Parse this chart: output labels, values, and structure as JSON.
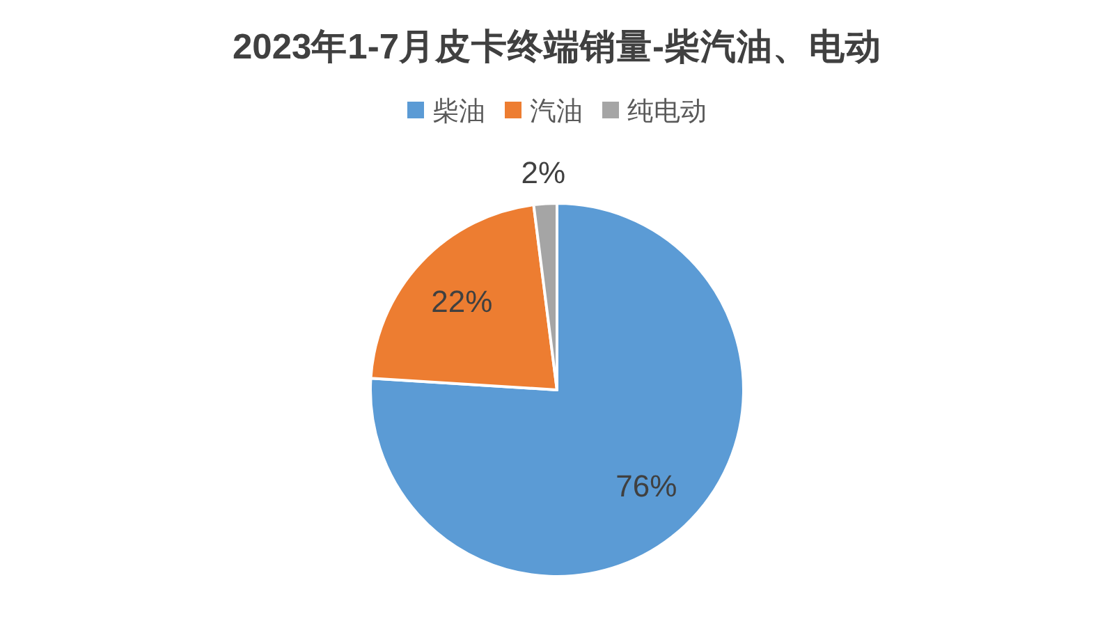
{
  "chart_data": {
    "type": "pie",
    "title": "2023年1-7月皮卡终端销量-柴汽油、电动",
    "categories": [
      "柴油",
      "汽油",
      "纯电动"
    ],
    "values": [
      76,
      22,
      2
    ],
    "colors": [
      "#5b9bd5",
      "#ed7d31",
      "#a5a5a5"
    ],
    "value_labels": [
      "76%",
      "22%",
      "2%"
    ],
    "legend": "top"
  }
}
